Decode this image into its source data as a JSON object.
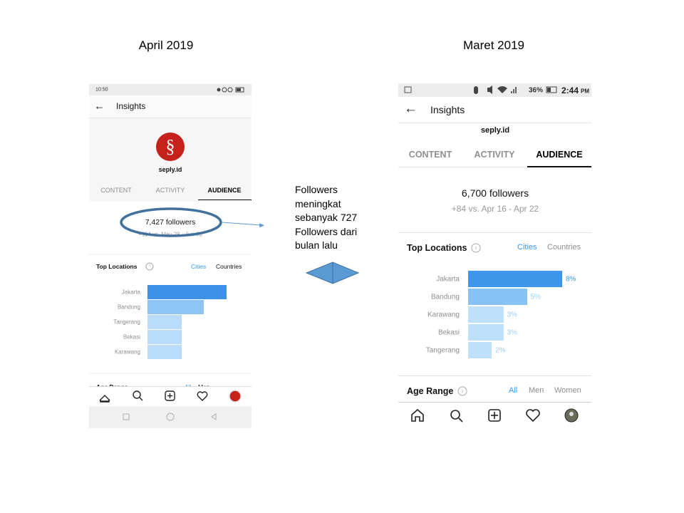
{
  "titles": {
    "left": "April 2019",
    "right": "Maret 2019"
  },
  "annotation": [
    "Followers",
    "meningkat",
    "sebanyak 727",
    "Followers dari",
    "bulan lalu"
  ],
  "left_phone": {
    "status_time": "10:50",
    "header": "Insights",
    "username": "seply.id",
    "tabs": [
      "CONTENT",
      "ACTIVITY",
      "AUDIENCE"
    ],
    "followers": "7,427 followers",
    "followers_change": "+114 vs. May 28 - Jun 03",
    "section": "Top Locations",
    "filters": [
      "Cities",
      "Countries"
    ],
    "cities": [
      "Jakarta",
      "Bandung",
      "Tangerang",
      "Bekasi",
      "Karawang"
    ],
    "values": [
      7,
      5,
      3,
      3,
      3
    ],
    "age_range": "Age Range",
    "age_filters": [
      "All",
      "Men"
    ]
  },
  "right_phone": {
    "status_battery": "36%",
    "status_time": "2:44",
    "status_ampm": "PM",
    "header": "Insights",
    "username": "seply.id",
    "tabs": [
      "CONTENT",
      "ACTIVITY",
      "AUDIENCE"
    ],
    "followers": "6,700 followers",
    "followers_change": "+84 vs. Apr 16 - Apr 22",
    "section": "Top Locations",
    "filters": [
      "Cities",
      "Countries"
    ],
    "cities": [
      "Jakarta",
      "Bandung",
      "Karawang",
      "Bekasi",
      "Tangerang"
    ],
    "values": [
      8,
      5,
      3,
      3,
      2
    ],
    "value_labels": [
      "8%",
      "5%",
      "3%",
      "3%",
      "2%"
    ],
    "age_range": "Age Range",
    "age_filters": [
      "All",
      "Men",
      "Women"
    ]
  }
}
